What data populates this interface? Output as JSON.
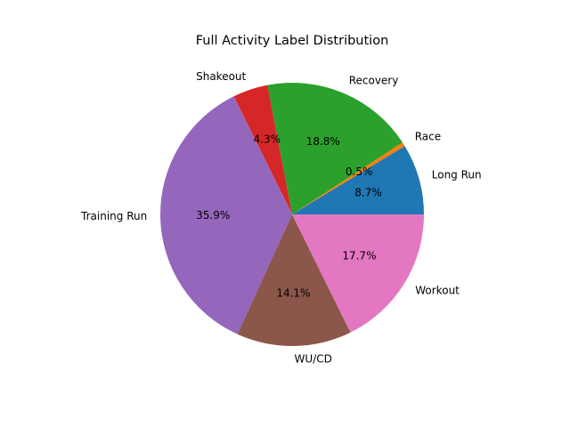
{
  "chart_data": {
    "type": "pie",
    "title": "Full Activity Label Distribution",
    "start_angle_deg": 0,
    "direction": "counterclockwise",
    "slices": [
      {
        "label": "Long Run",
        "value": 8.7,
        "pct_label": "8.7%",
        "color": "#1f77b4"
      },
      {
        "label": "Race",
        "value": 0.5,
        "pct_label": "0.5%",
        "color": "#ff7f0e"
      },
      {
        "label": "Recovery",
        "value": 18.8,
        "pct_label": "18.8%",
        "color": "#2ca02c"
      },
      {
        "label": "Shakeout",
        "value": 4.3,
        "pct_label": "4.3%",
        "color": "#d62728"
      },
      {
        "label": "Training Run",
        "value": 35.9,
        "pct_label": "35.9%",
        "color": "#9467bd"
      },
      {
        "label": "WU/CD",
        "value": 14.1,
        "pct_label": "14.1%",
        "color": "#8c564b"
      },
      {
        "label": "Workout",
        "value": 17.7,
        "pct_label": "17.7%",
        "color": "#e377c2"
      }
    ]
  }
}
